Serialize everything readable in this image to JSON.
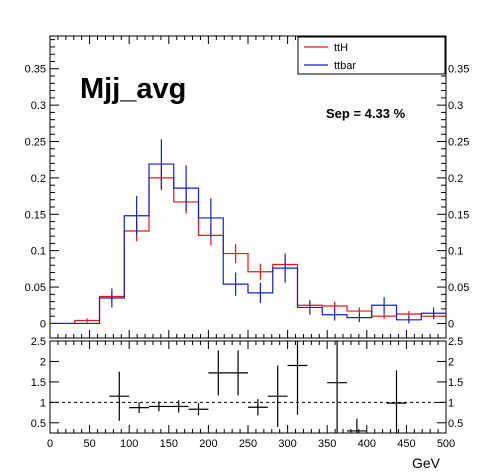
{
  "chart_data": [
    {
      "type": "line",
      "title": "Mjj_avg",
      "annotation": "Sep = 4.33 %",
      "xlim": [
        0,
        500
      ],
      "ylim": [
        -0.02,
        0.395
      ],
      "yticks": [
        "0",
        "0.05",
        "0.1",
        "0.15",
        "0.2",
        "0.25",
        "0.3",
        "0.35"
      ],
      "bin_edges": [
        0,
        31.25,
        62.5,
        93.75,
        125,
        156.25,
        187.5,
        218.75,
        250,
        281.25,
        312.5,
        343.75,
        375,
        406.25,
        437.5,
        468.75,
        500
      ],
      "legend_position": "top-right",
      "series": [
        {
          "name": "ttH",
          "color": "#e8141b",
          "values": [
            0.0,
            0.004,
            0.037,
            0.127,
            0.2,
            0.167,
            0.121,
            0.096,
            0.071,
            0.081,
            0.025,
            0.024,
            0.017,
            0.01,
            0.013,
            0.01,
            0.002
          ],
          "errors": [
            0.0,
            0.003,
            0.008,
            0.014,
            0.017,
            0.016,
            0.014,
            0.013,
            0.011,
            0.012,
            0.006,
            0.006,
            0.005,
            0.004,
            0.004,
            0.004,
            0.003
          ]
        },
        {
          "name": "ttbar",
          "color": "#1520c8",
          "values": [
            0.0,
            0.0,
            0.035,
            0.148,
            0.219,
            0.186,
            0.145,
            0.054,
            0.042,
            0.076,
            0.022,
            0.012,
            0.008,
            0.025,
            0.005,
            0.014,
            0.01
          ],
          "errors": [
            0.0,
            0.0,
            0.013,
            0.027,
            0.034,
            0.031,
            0.027,
            0.016,
            0.014,
            0.02,
            0.01,
            0.008,
            0.006,
            0.011,
            0.005,
            0.008,
            0.01
          ]
        }
      ]
    },
    {
      "type": "scatter",
      "xlabel": "GeV",
      "xlim": [
        0,
        500
      ],
      "ylim": [
        0.25,
        2.5
      ],
      "xticks": [
        "0",
        "50",
        "100",
        "150",
        "200",
        "250",
        "300",
        "350",
        "400",
        "450",
        "500"
      ],
      "yticks": [
        "0.5",
        "1",
        "1.5",
        "2",
        "2.5"
      ],
      "reference_line": 1,
      "points": [
        {
          "x": 87.5,
          "y": 1.15,
          "xerr": 12.5,
          "yerr": 0.6
        },
        {
          "x": 112.5,
          "y": 0.87,
          "xerr": 12.5,
          "yerr": 0.13
        },
        {
          "x": 137.5,
          "y": 0.9,
          "xerr": 12.5,
          "yerr": 0.12
        },
        {
          "x": 162.5,
          "y": 0.9,
          "xerr": 12.5,
          "yerr": 0.15
        },
        {
          "x": 187.5,
          "y": 0.83,
          "xerr": 12.5,
          "yerr": 0.15
        },
        {
          "x": 212.5,
          "y": 1.72,
          "xerr": 12.5,
          "yerr": 0.55
        },
        {
          "x": 237.5,
          "y": 1.72,
          "xerr": 12.5,
          "yerr": 0.55
        },
        {
          "x": 262.5,
          "y": 0.88,
          "xerr": 12.5,
          "yerr": 0.2
        },
        {
          "x": 287.5,
          "y": 1.15,
          "xerr": 12.5,
          "yerr": 0.75
        },
        {
          "x": 312.5,
          "y": 1.9,
          "xerr": 12.5,
          "yerr": 1.2
        },
        {
          "x": 362.5,
          "y": 1.48,
          "xerr": 12.5,
          "yerr": 1.5
        },
        {
          "x": 387.5,
          "y": 0.3,
          "xerr": 12.5,
          "yerr": 0.3
        },
        {
          "x": 437.5,
          "y": 0.98,
          "xerr": 12.5,
          "yerr": 0.8
        }
      ]
    }
  ]
}
